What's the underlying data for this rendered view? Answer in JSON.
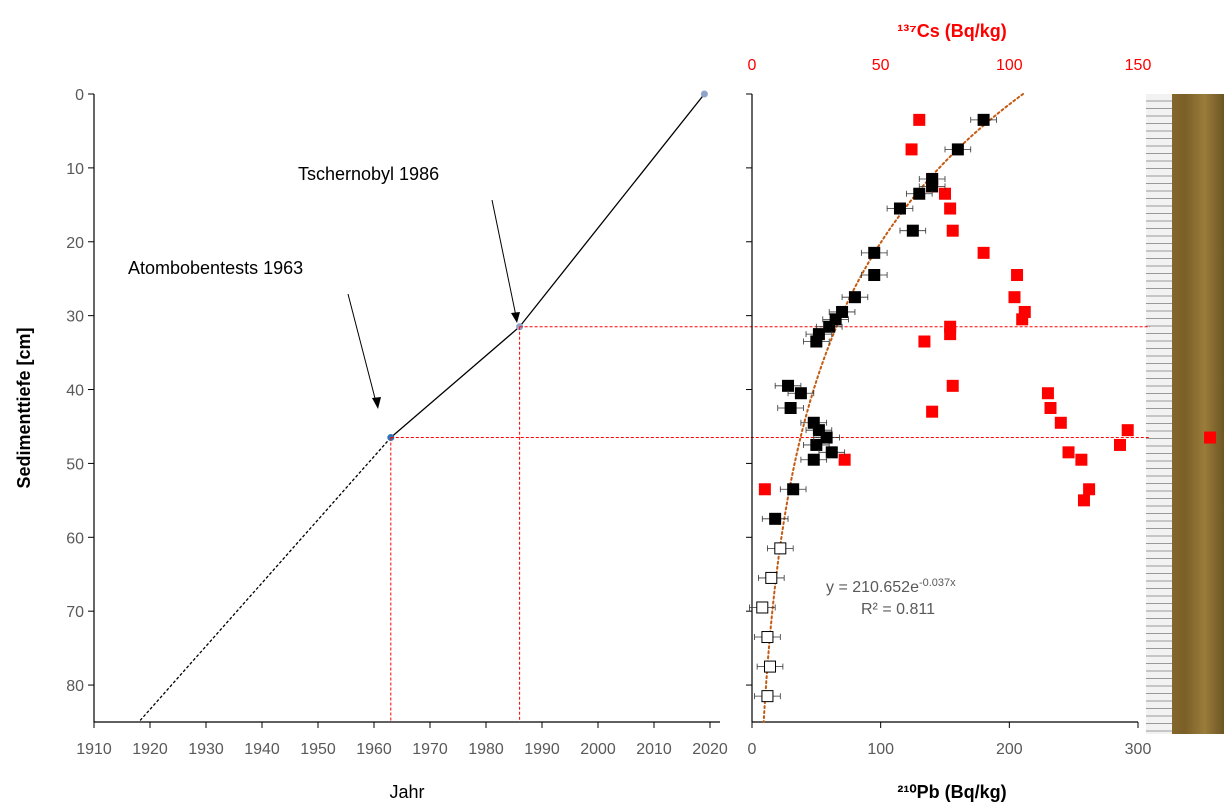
{
  "chart_data": [
    {
      "type": "line",
      "xlabel": "Jahr",
      "ylabel": "Sedimenttiefe [cm]",
      "xlim": [
        1910,
        2020
      ],
      "ylim": [
        0,
        85
      ],
      "xticks": [
        "1910",
        "1920",
        "1930",
        "1940",
        "1950",
        "1960",
        "1970",
        "1980",
        "1990",
        "2000",
        "2010",
        "2020"
      ],
      "yticks": [
        "0",
        "10",
        "20",
        "30",
        "40",
        "50",
        "60",
        "70",
        "80"
      ],
      "series": [
        {
          "style": "solid",
          "x": [
            2019,
            1986,
            1963
          ],
          "y": [
            0,
            31.5,
            46.5
          ]
        },
        {
          "style": "dashed",
          "x": [
            1963,
            1918
          ],
          "y": [
            46.5,
            85
          ]
        }
      ],
      "markers": [
        {
          "x": 2019,
          "y": 0,
          "color": "#8fa4c8"
        },
        {
          "x": 1986,
          "y": 31.5,
          "color": "#8fa4c8"
        },
        {
          "x": 1963,
          "y": 46.5,
          "color": "#2e75b6"
        }
      ],
      "annotations": [
        {
          "text": "Tschernobyl 1986",
          "x": 1986,
          "y": 31.5
        },
        {
          "text": "Atombobentests 1963",
          "x": 1963,
          "y": 46.5
        }
      ],
      "grid": false
    },
    {
      "type": "scatter",
      "xlabel": "²¹⁰Pb (Bq/kg)",
      "x2label": "¹³⁷Cs (Bq/kg)",
      "xlim": [
        0,
        300
      ],
      "x2lim": [
        0,
        150
      ],
      "ylim": [
        0,
        85
      ],
      "xticks": [
        "0",
        "100",
        "200",
        "300"
      ],
      "x2ticks": [
        "0",
        "50",
        "100",
        "150"
      ],
      "series": [
        {
          "marker": "filled-black-square",
          "x": [
            180,
            160,
            140,
            140,
            130,
            115,
            125,
            95,
            95,
            80,
            70,
            65,
            60,
            52,
            50,
            28,
            38,
            30,
            48,
            52,
            50,
            58,
            62,
            48,
            32,
            18
          ],
          "y": [
            3.5,
            7.5,
            11.5,
            12.5,
            13.5,
            15.5,
            18.5,
            21.5,
            24.5,
            27.5,
            29.5,
            30.5,
            31.5,
            32.5,
            33.5,
            39.5,
            40.5,
            42.5,
            44.5,
            45.5,
            47.5,
            46.5,
            48.5,
            49.5,
            53.5,
            57.5
          ]
        },
        {
          "marker": "open-square",
          "x": [
            22,
            15,
            8,
            12,
            14,
            12
          ],
          "y": [
            61.5,
            65.5,
            69.5,
            73.5,
            77.5,
            81.5
          ]
        },
        {
          "marker": "red-square",
          "axis": "x2",
          "x": [
            65,
            62,
            70,
            70,
            75,
            77,
            78,
            90,
            103,
            102,
            106,
            105,
            77,
            67,
            77,
            78,
            115,
            116,
            120,
            146,
            178,
            143,
            123,
            128,
            131,
            129,
            70,
            5,
            36
          ],
          "y": [
            3.5,
            7.5,
            12.5,
            11.5,
            13.5,
            15.5,
            18.5,
            21.5,
            24.5,
            27.5,
            29.5,
            30.5,
            31.5,
            33.5,
            32.5,
            39.5,
            40.5,
            42.5,
            44.5,
            45.5,
            46.5,
            47.5,
            48.5,
            49.5,
            53.5,
            55,
            43,
            53.5,
            49.5
          ]
        }
      ],
      "fit": {
        "type": "exponential",
        "a": 210.652,
        "b": -0.037,
        "equation": "y = 210.652e",
        "exponent": "-0.037x",
        "r2_label": "R² = 0.811"
      },
      "grid": false
    }
  ],
  "reference_lines": [
    {
      "x_year": 1986,
      "depth": 31.5
    },
    {
      "x_year": 1963,
      "depth": 46.5
    }
  ],
  "colors": {
    "cs_series": "#ff0000",
    "pb_series": "#000000",
    "fit_line": "#c55a11",
    "ref_lines": "#ff0000"
  }
}
